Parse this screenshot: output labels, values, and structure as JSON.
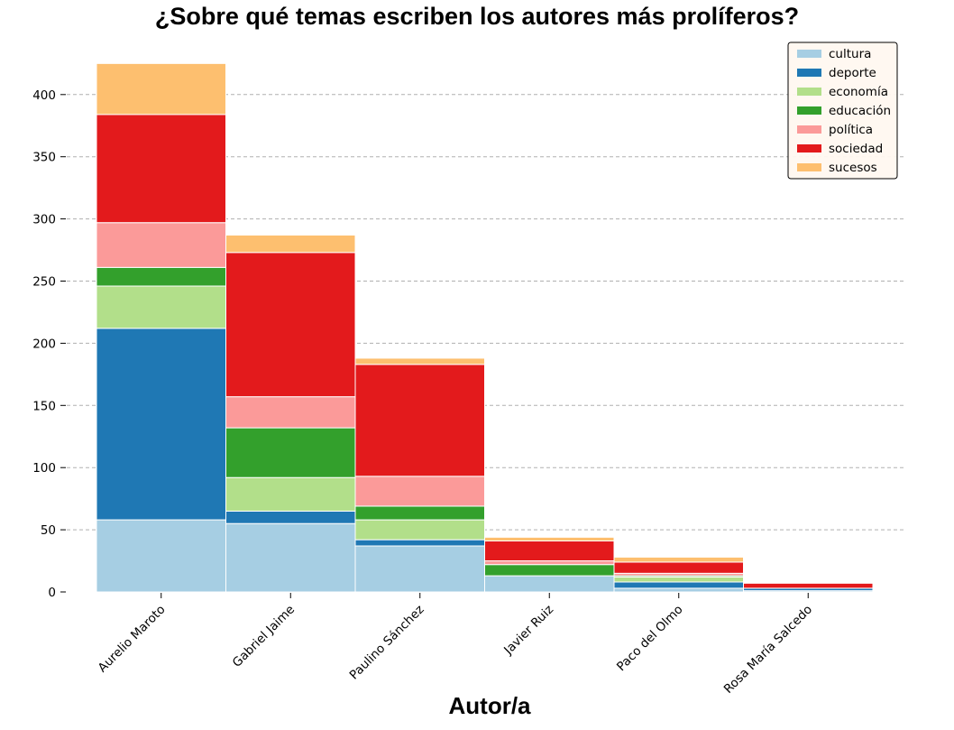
{
  "chart_data": {
    "type": "bar",
    "stacked": true,
    "title": "¿Sobre qué temas escriben los autores más prolíferos?",
    "xlabel": "Autor/a",
    "ylabel": "",
    "ylim": [
      0,
      425
    ],
    "yticks": [
      0,
      50,
      100,
      150,
      200,
      250,
      300,
      350,
      400
    ],
    "grid": "horizontal dashed",
    "legend_position": "top-right",
    "categories": [
      "Aurelio Maroto",
      "Gabriel Jaime",
      "Paulino Sánchez",
      "Javier Ruiz",
      "Paco del Olmo",
      "Rosa María Salcedo"
    ],
    "series": [
      {
        "name": "cultura",
        "color": "#a6cee3",
        "values": [
          58,
          55,
          37,
          13,
          3,
          1
        ]
      },
      {
        "name": "deporte",
        "color": "#1f78b4",
        "values": [
          154,
          10,
          5,
          0,
          5,
          2
        ]
      },
      {
        "name": "economía",
        "color": "#b2df8a",
        "values": [
          34,
          27,
          16,
          0,
          4,
          0
        ]
      },
      {
        "name": "educación",
        "color": "#33a02c",
        "values": [
          15,
          40,
          11,
          9,
          1,
          0
        ]
      },
      {
        "name": "política",
        "color": "#fb9a99",
        "values": [
          36,
          25,
          24,
          3,
          2,
          0
        ]
      },
      {
        "name": "sociedad",
        "color": "#e31a1c",
        "values": [
          87,
          116,
          90,
          16,
          9,
          4
        ]
      },
      {
        "name": "sucesos",
        "color": "#fdbf6f",
        "values": [
          41,
          14,
          5,
          3,
          4,
          0
        ]
      }
    ]
  }
}
